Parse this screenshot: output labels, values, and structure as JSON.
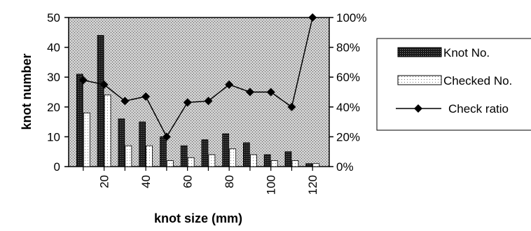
{
  "chart_data": {
    "type": "bar",
    "x_tick_labels": [
      "20",
      "40",
      "60",
      "80",
      "100",
      "120"
    ],
    "x": [
      10,
      20,
      30,
      40,
      50,
      60,
      70,
      80,
      90,
      100,
      110,
      120
    ],
    "series": [
      {
        "name": "Knot No.",
        "kind": "bar",
        "axis": "left",
        "fill": "dark-dotted",
        "values": [
          31,
          44,
          16,
          15,
          10,
          7,
          9,
          11,
          8,
          4,
          5,
          1
        ]
      },
      {
        "name": "Checked No.",
        "kind": "bar",
        "axis": "left",
        "fill": "light-dotted",
        "values": [
          18,
          24,
          7,
          7,
          2,
          3,
          4,
          6,
          4,
          2,
          2,
          1
        ]
      },
      {
        "name": "Check ratio",
        "kind": "line",
        "axis": "right",
        "marker": "diamond",
        "values": [
          58,
          55,
          44,
          47,
          20,
          43,
          44,
          55,
          50,
          50,
          40,
          100
        ]
      }
    ],
    "xlabel": "knot size (mm)",
    "ylabel": "knot number",
    "ylim": [
      0,
      50
    ],
    "y_ticks": [
      "0",
      "10",
      "20",
      "30",
      "40",
      "50"
    ],
    "y2lim": [
      0,
      100
    ],
    "y2_ticks": [
      "0%",
      "20%",
      "40%",
      "60%",
      "80%",
      "100%"
    ],
    "legend_position": "right",
    "plot_background": "grey-stippled",
    "colors": {
      "bar_dark": "#202020",
      "bar_light": "#ffffff",
      "line": "#000000",
      "plot_bg": "#bdbdbd"
    }
  }
}
